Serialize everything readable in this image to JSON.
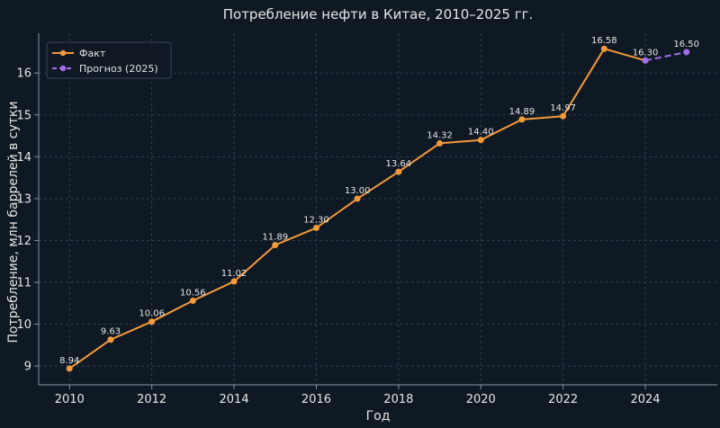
{
  "chart_data": {
    "type": "line",
    "title": "Потребление нефти в Китае, 2010–2025 гг.",
    "xlabel": "Год",
    "ylabel": "Потребление, млн баррелей в сутки",
    "xlim": [
      2009.25,
      2025.75
    ],
    "ylim": [
      8.55,
      16.95
    ],
    "xticks": [
      2010,
      2012,
      2014,
      2016,
      2018,
      2020,
      2022,
      2024
    ],
    "yticks": [
      9,
      10,
      11,
      12,
      13,
      14,
      15,
      16
    ],
    "grid": true,
    "legend_position": "top-left",
    "series": [
      {
        "name": "Факт",
        "color": "#f59a3a",
        "style": "solid",
        "x": [
          2010,
          2011,
          2012,
          2013,
          2014,
          2015,
          2016,
          2017,
          2018,
          2019,
          2020,
          2021,
          2022,
          2023,
          2024
        ],
        "values": [
          8.94,
          9.63,
          10.06,
          10.56,
          11.02,
          11.89,
          12.3,
          13.0,
          13.64,
          14.32,
          14.4,
          14.89,
          14.97,
          16.58,
          16.3
        ],
        "labels": [
          "8.94",
          "9.63",
          "10.06",
          "10.56",
          "11.02",
          "11.89",
          "12.30",
          "13.00",
          "13.64",
          "14.32",
          "14.40",
          "14.89",
          "14.97",
          "16.58",
          "16.30"
        ]
      },
      {
        "name": "Прогноз (2025)",
        "color": "#a66bf0",
        "style": "dashed",
        "x": [
          2024,
          2025
        ],
        "values": [
          16.3,
          16.5
        ],
        "labels": [
          "",
          "16.50"
        ]
      }
    ]
  }
}
